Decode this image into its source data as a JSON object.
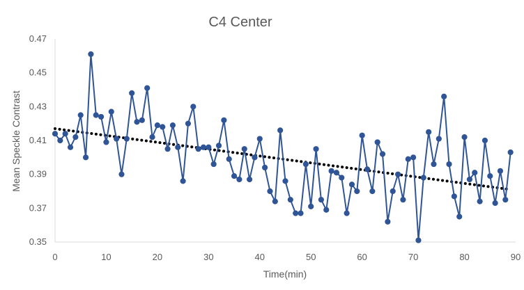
{
  "chart_data": {
    "type": "scatter",
    "title": "C4  Center",
    "xlabel": "Time(min)",
    "ylabel": "Mean Speckle Contrast",
    "xlim": [
      0,
      90
    ],
    "ylim": [
      0.35,
      0.47
    ],
    "xticks": [
      "0",
      "10",
      "20",
      "30",
      "40",
      "50",
      "60",
      "70",
      "80",
      "90"
    ],
    "yticks": [
      "0.35",
      "0.37",
      "0.39",
      "0.41",
      "0.43",
      "0.45",
      "0.47"
    ],
    "grid": false,
    "legend": "none",
    "series": [
      {
        "type": "line-with-markers",
        "color": "#2F5597",
        "x": [
          0,
          1,
          2,
          3,
          4,
          5,
          6,
          7,
          8,
          9,
          10,
          11,
          12,
          13,
          14,
          15,
          16,
          17,
          18,
          19,
          20,
          21,
          22,
          23,
          24,
          25,
          26,
          27,
          28,
          29,
          30,
          31,
          32,
          33,
          34,
          35,
          36,
          37,
          38,
          39,
          40,
          41,
          42,
          43,
          44,
          45,
          46,
          47,
          48,
          49,
          50,
          51,
          52,
          53,
          54,
          55,
          56,
          57,
          58,
          59,
          60,
          61,
          62,
          63,
          64,
          65,
          66,
          67,
          68,
          69,
          70,
          71,
          72,
          73,
          74,
          75,
          76,
          77,
          78,
          79,
          80,
          81,
          82,
          83,
          84,
          85,
          86,
          87,
          88,
          89
        ],
        "y": [
          0.414,
          0.41,
          0.414,
          0.406,
          0.412,
          0.425,
          0.4,
          0.461,
          0.425,
          0.424,
          0.409,
          0.427,
          0.411,
          0.39,
          0.411,
          0.438,
          0.421,
          0.422,
          0.441,
          0.412,
          0.419,
          0.418,
          0.405,
          0.419,
          0.406,
          0.386,
          0.42,
          0.43,
          0.405,
          0.406,
          0.406,
          0.396,
          0.407,
          0.422,
          0.399,
          0.389,
          0.387,
          0.405,
          0.387,
          0.4,
          0.411,
          0.394,
          0.38,
          0.374,
          0.416,
          0.386,
          0.375,
          0.367,
          0.367,
          0.396,
          0.371,
          0.405,
          0.375,
          0.369,
          0.392,
          0.391,
          0.388,
          0.367,
          0.384,
          0.38,
          0.413,
          0.393,
          0.38,
          0.409,
          0.402,
          0.362,
          0.38,
          0.39,
          0.375,
          0.399,
          0.4,
          0.351,
          0.388,
          0.415,
          0.396,
          0.411,
          0.436,
          0.396,
          0.377,
          0.365,
          0.412,
          0.387,
          0.391,
          0.374,
          0.41,
          0.389,
          0.373,
          0.392,
          0.375,
          0.403
        ]
      }
    ],
    "trendline": {
      "type": "linear",
      "style": "dotted",
      "color": "#000000",
      "x": [
        0,
        89
      ],
      "y": [
        0.417,
        0.381
      ]
    }
  }
}
